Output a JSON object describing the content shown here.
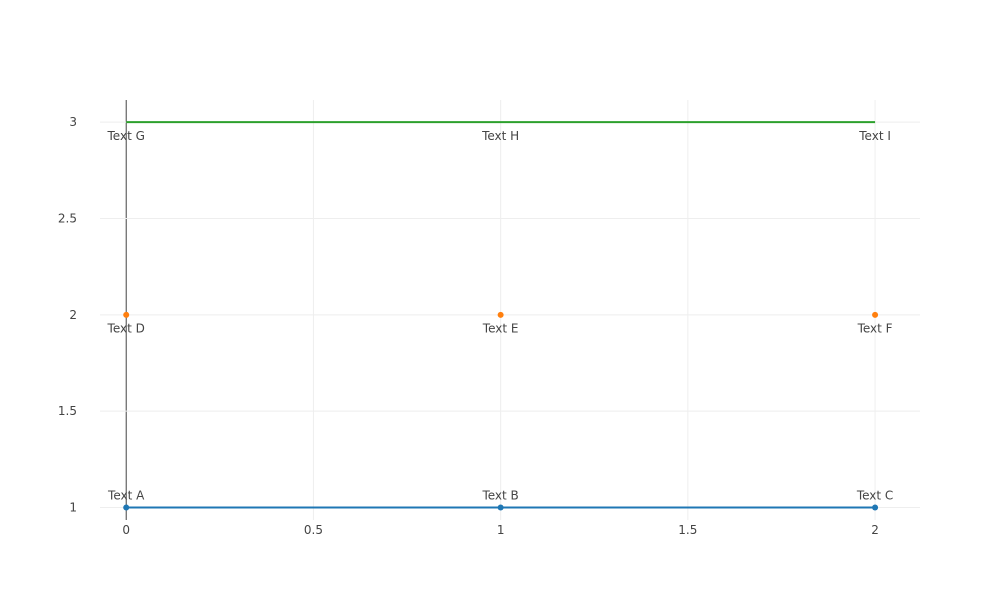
{
  "chart_data": {
    "type": "line",
    "title": "",
    "xlabel": "",
    "ylabel": "",
    "xlim": [
      -0.07,
      2.12
    ],
    "ylim": [
      0.935,
      3.115
    ],
    "grid": true,
    "x_ticks": [
      "0",
      "0.5",
      "1",
      "1.5",
      "2"
    ],
    "y_ticks": [
      "1",
      "1.5",
      "2",
      "2.5",
      "3"
    ],
    "series": [
      {
        "mode": "lines+markers+text",
        "color": "#1f77b4",
        "x": [
          0,
          1,
          2
        ],
        "y": [
          1,
          1,
          1
        ],
        "text": [
          "Text A",
          "Text B",
          "Text C"
        ],
        "textposition": "top"
      },
      {
        "mode": "markers+text",
        "color": "#ff7f0e",
        "x": [
          0,
          1,
          2
        ],
        "y": [
          2,
          2,
          2
        ],
        "text": [
          "Text D",
          "Text E",
          "Text F"
        ],
        "textposition": "bottom"
      },
      {
        "mode": "lines+text",
        "color": "#2ca02c",
        "x": [
          0,
          1,
          2
        ],
        "y": [
          3,
          3,
          3
        ],
        "text": [
          "Text G",
          "Text H",
          "Text I"
        ],
        "textposition": "bottom"
      }
    ]
  }
}
